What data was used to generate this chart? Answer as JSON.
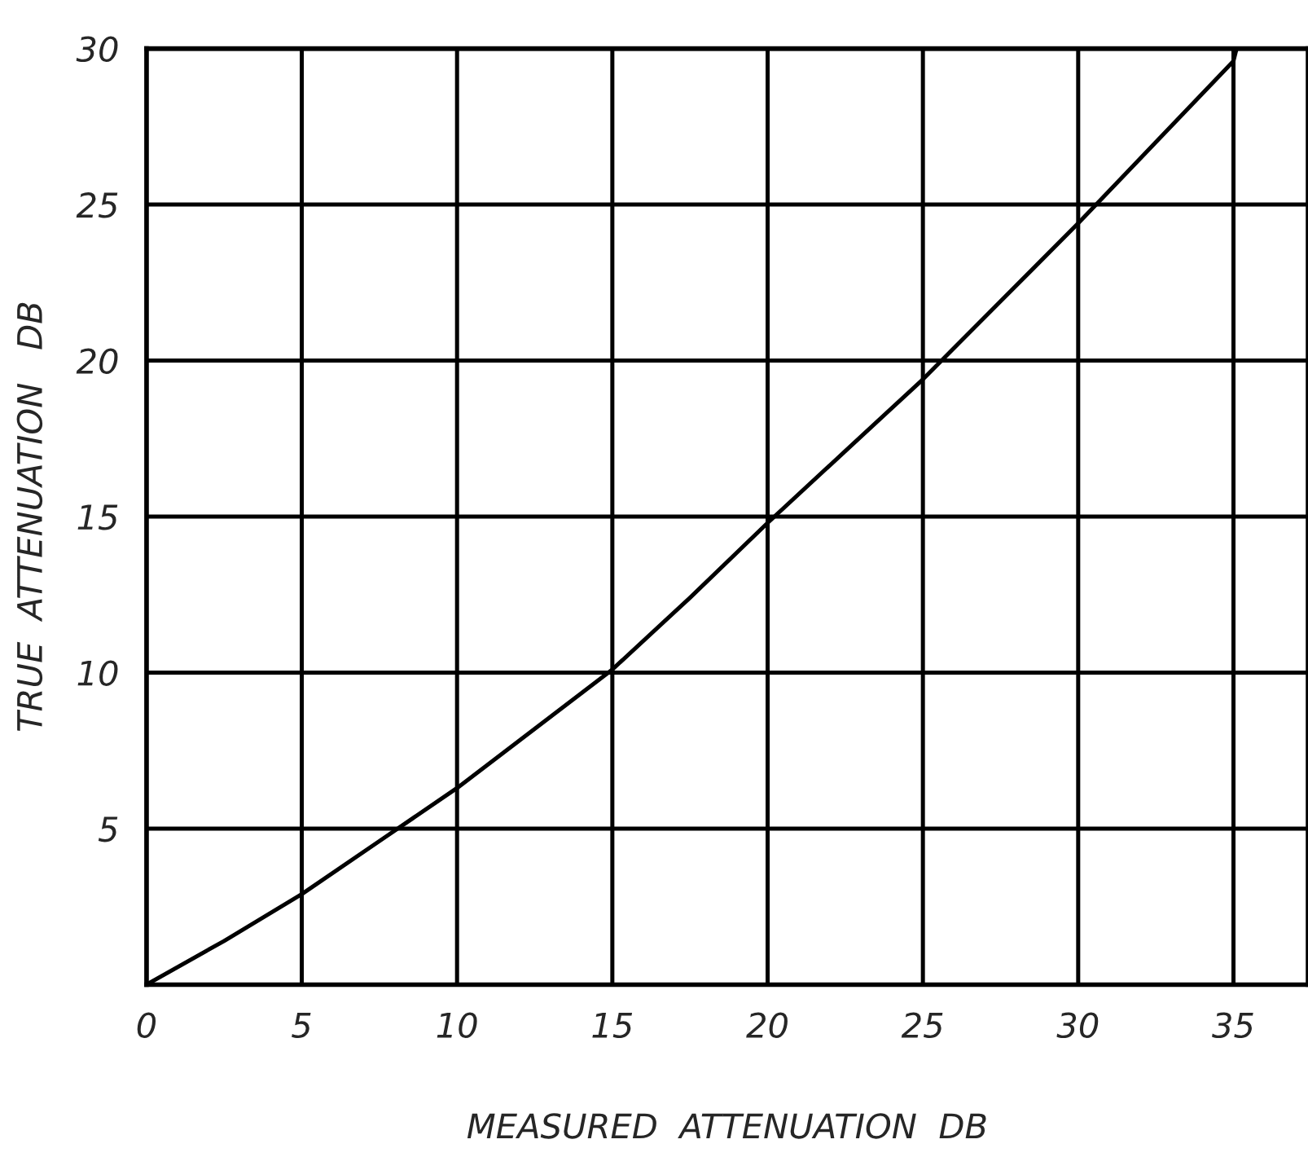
{
  "chart_data": {
    "type": "line",
    "xlabel": "MEASURED  ATTENUATION  DB",
    "ylabel": "TRUE  ATTENUATION   DB",
    "x": [
      0,
      2.5,
      5,
      7.5,
      10,
      12.5,
      15,
      17.5,
      20,
      22.5,
      25,
      27.5,
      30,
      32.5,
      35,
      35.1
    ],
    "series": [
      {
        "color": "#000000",
        "values": [
          0,
          1.4,
          2.9,
          4.6,
          6.3,
          8.2,
          10.1,
          12.4,
          14.8,
          17.1,
          19.4,
          21.9,
          24.4,
          27,
          29.6,
          30
        ]
      }
    ],
    "xlim": [
      0,
      37.4
    ],
    "ylim": [
      0,
      30
    ],
    "xticks": [
      0,
      5,
      10,
      15,
      20,
      25,
      30,
      35
    ],
    "yticks": [
      {
        "value": 0,
        "label": null
      },
      5,
      10,
      15,
      20,
      25,
      30
    ],
    "grid": true,
    "marker": "none",
    "line_style": "solid",
    "legend": false
  }
}
